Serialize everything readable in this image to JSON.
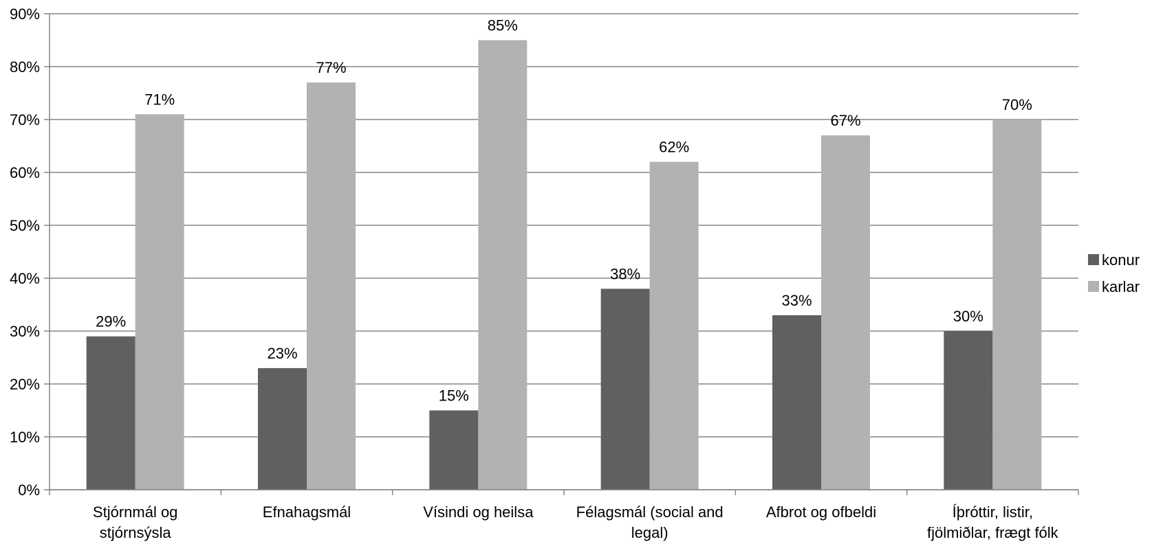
{
  "chart_data": {
    "type": "bar",
    "categories": [
      [
        "Stjórnmál og",
        "stjórnsýsla"
      ],
      [
        "Efnahagsmál"
      ],
      [
        "Vísindi og heilsa"
      ],
      [
        "Félagsmál (social and",
        "legal)"
      ],
      [
        "Afbrot og ofbeldi"
      ],
      [
        "Íþróttir, listir,",
        "fjölmiðlar, frægt fólk"
      ]
    ],
    "series": [
      {
        "name": "konur",
        "values": [
          29,
          23,
          15,
          38,
          33,
          30
        ],
        "color": "#606060"
      },
      {
        "name": "karlar",
        "values": [
          71,
          77,
          85,
          62,
          67,
          70
        ],
        "color": "#b2b2b2"
      }
    ],
    "data_labels": [
      [
        "29%",
        "23%",
        "15%",
        "38%",
        "33%",
        "30%"
      ],
      [
        "71%",
        "77%",
        "85%",
        "62%",
        "67%",
        "70%"
      ]
    ],
    "y_ticks": [
      "0%",
      "10%",
      "20%",
      "30%",
      "40%",
      "50%",
      "60%",
      "70%",
      "80%",
      "90%"
    ],
    "ylim": [
      0,
      90
    ],
    "title": "",
    "xlabel": "",
    "ylabel": "",
    "grid": true,
    "gridline_color": "#868686",
    "legend_position": "right"
  }
}
